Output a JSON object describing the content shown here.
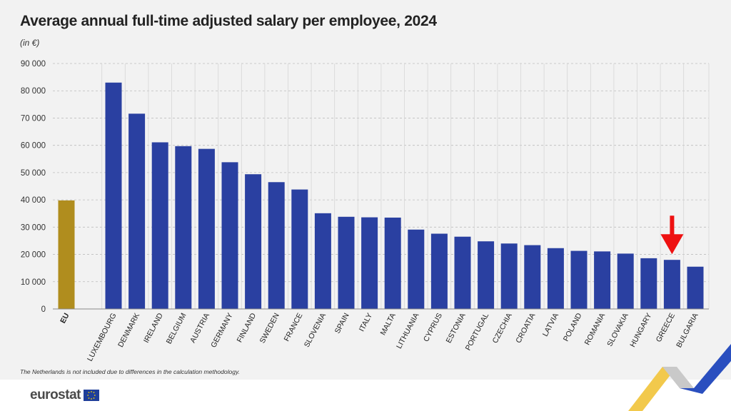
{
  "header": {
    "title": "Average annual full-time adjusted salary per employee, 2024",
    "unit": "(in €)"
  },
  "footer": {
    "note": "The Netherlands is not included due to differences in the calculation methodology.",
    "logo_text": "eurostat"
  },
  "colors": {
    "eu_bar": "#b08d1e",
    "country_bar": "#2a40a1",
    "highlight_arrow": "#ee1111",
    "background": "#f2f2f2"
  },
  "chart_data": {
    "type": "bar",
    "title": "Average annual full-time adjusted salary per employee, 2024",
    "ylabel": "(in €)",
    "xlabel": "",
    "ylim": [
      0,
      90000
    ],
    "yticks": [
      0,
      10000,
      20000,
      30000,
      40000,
      50000,
      60000,
      70000,
      80000,
      90000
    ],
    "ytick_labels": [
      "0",
      "10 000",
      "20 000",
      "30 000",
      "40 000",
      "50 000",
      "60 000",
      "70 000",
      "80 000",
      "90 000"
    ],
    "grid": true,
    "categories": [
      "EU",
      "LUXEMBOURG",
      "DENMARK",
      "IRELAND",
      "BELGIUM",
      "AUSTRIA",
      "GERMANY",
      "FINLAND",
      "SWEDEN",
      "FRANCE",
      "SLOVENIA",
      "SPAIN",
      "ITALY",
      "MALTA",
      "LITHUANIA",
      "CYPRUS",
      "ESTONIA",
      "PORTUGAL",
      "CZECHIA",
      "CROATIA",
      "LATVIA",
      "POLAND",
      "ROMANIA",
      "SLOVAKIA",
      "HUNGARY",
      "GREECE",
      "BULGARIA"
    ],
    "values": [
      39800,
      83000,
      71600,
      61100,
      59700,
      58700,
      53800,
      49400,
      46500,
      43800,
      35100,
      33800,
      33600,
      33500,
      29100,
      27600,
      26500,
      24800,
      24000,
      23400,
      22300,
      21300,
      21100,
      20300,
      18600,
      18000,
      15500
    ],
    "highlighted_category": "GREECE"
  }
}
